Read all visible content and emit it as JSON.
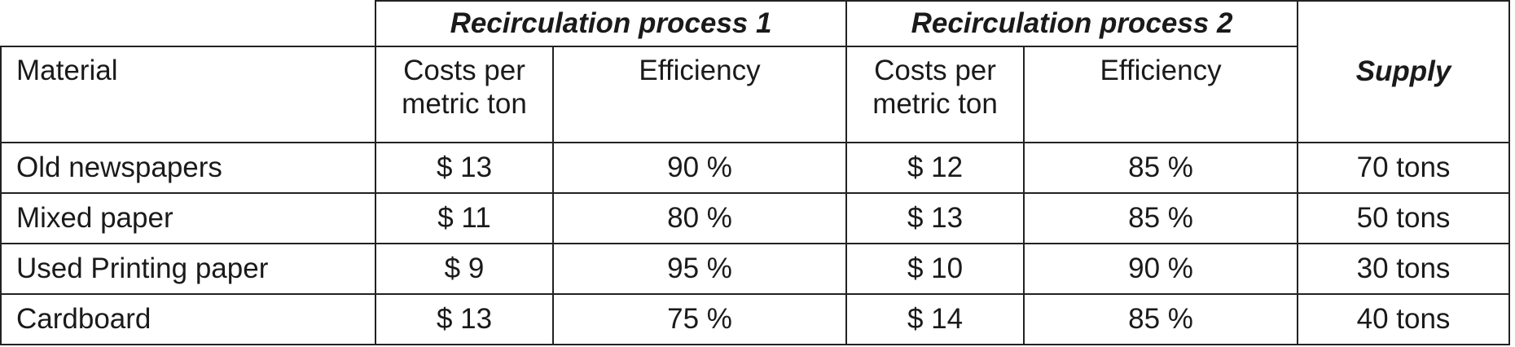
{
  "table": {
    "group_headers": [
      "Recirculation process 1",
      "Recirculation process 2"
    ],
    "supply_header": "Supply",
    "material_header": "Material",
    "sub_headers": {
      "p1_cost": "Costs per metric ton",
      "p1_eff": "Efficiency",
      "p2_cost": "Costs per metric ton",
      "p2_eff": "Efficiency"
    },
    "rows": [
      {
        "material": "Old newspapers",
        "p1_cost": "$ 13",
        "p1_eff": "90 %",
        "p2_cost": "$ 12",
        "p2_eff": "85 %",
        "supply": "70 tons"
      },
      {
        "material": "Mixed paper",
        "p1_cost": "$ 11",
        "p1_eff": "80 %",
        "p2_cost": "$ 13",
        "p2_eff": "85 %",
        "supply": "50 tons"
      },
      {
        "material": "Used Printing paper",
        "p1_cost": "$ 9",
        "p1_eff": "95 %",
        "p2_cost": "$ 10",
        "p2_eff": "90 %",
        "supply": "30 tons"
      },
      {
        "material": "Cardboard",
        "p1_cost": "$ 13",
        "p1_eff": "75 %",
        "p2_cost": "$ 14",
        "p2_eff": "85 %",
        "supply": "40 tons"
      }
    ]
  }
}
